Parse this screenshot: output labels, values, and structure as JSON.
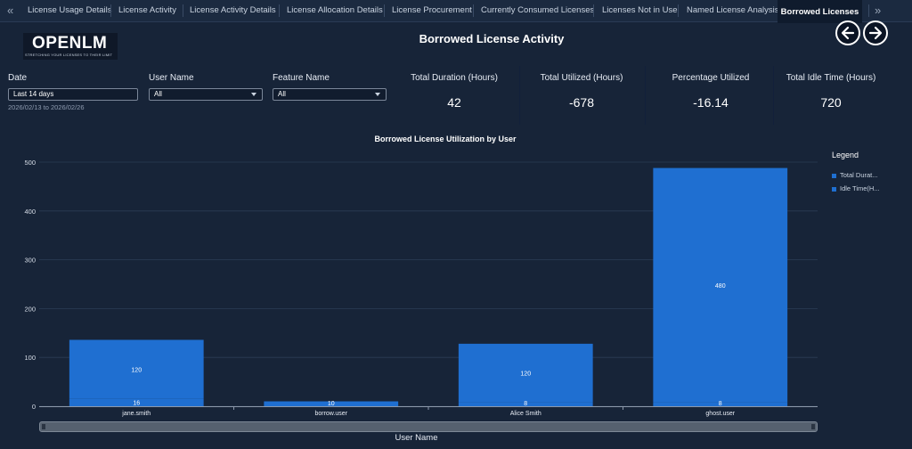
{
  "tabs": {
    "prev_arrow": "«",
    "next_arrow": "»",
    "items": [
      {
        "label": "License Usage Details"
      },
      {
        "label": "License Activity"
      },
      {
        "label": "License Activity Details"
      },
      {
        "label": "License Allocation Details"
      },
      {
        "label": "License Procurement"
      },
      {
        "label": "Currently Consumed Licenses"
      },
      {
        "label": "Licenses Not in Use"
      },
      {
        "label": "Named License Analysis"
      },
      {
        "label": "Borrowed Licenses",
        "active": true
      }
    ]
  },
  "logo": {
    "text": "OPENLM",
    "tagline": "STRETCHING YOUR LICENSES TO THEIR LIMIT"
  },
  "page_title": "Borrowed License Activity",
  "nav": {
    "back_icon": "arrow-left-icon",
    "forward_icon": "arrow-right-icon"
  },
  "filters": {
    "date": {
      "label": "Date",
      "value": "Last 14 days",
      "range": "2026/02/13 to 2026/02/26"
    },
    "user": {
      "label": "User Name",
      "value": "All"
    },
    "feature": {
      "label": "Feature Name",
      "value": "All"
    }
  },
  "kpis": [
    {
      "label": "Total Duration (Hours)",
      "value": "42"
    },
    {
      "label": "Total Utilized (Hours)",
      "value": "-678"
    },
    {
      "label": "Percentage Utilized",
      "value": "-16.14"
    },
    {
      "label": "Total Idle Time (Hours)",
      "value": "720"
    }
  ],
  "legend": {
    "title": "Legend",
    "items": [
      "Total Durat...",
      "Idle Time(H..."
    ]
  },
  "colors": {
    "bar": "#1f6fd1",
    "background": "#172438",
    "grid": "#2c3c55"
  },
  "chart_data": {
    "type": "bar",
    "stacked": true,
    "title": "Borrowed License Utilization by User",
    "xlabel": "User Name",
    "ylabel": "",
    "ylim": [
      0,
      500
    ],
    "yticks": [
      0,
      100,
      200,
      300,
      400,
      500
    ],
    "categories": [
      "jane.smith",
      "borrow.user",
      "Alice Smith",
      "ghost.user"
    ],
    "series": [
      {
        "name": "Total Durat...",
        "values": [
          16,
          10,
          8,
          8
        ]
      },
      {
        "name": "Idle Time(H...",
        "values": [
          120,
          null,
          120,
          480
        ]
      }
    ],
    "legend_position": "right",
    "grid": true
  }
}
